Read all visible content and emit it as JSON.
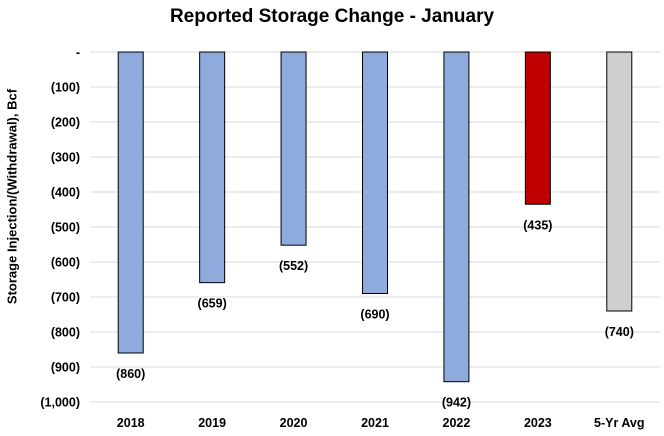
{
  "chart_data": {
    "type": "bar",
    "title": "Reported Storage Change - January",
    "ylabel": "Storage Injection/(Withdrawal), Bcf",
    "xlabel": "",
    "categories": [
      "2018",
      "2019",
      "2020",
      "2021",
      "2022",
      "2023",
      "5-Yr Avg"
    ],
    "values": [
      -860,
      -659,
      -552,
      -690,
      -942,
      -435,
      -740
    ],
    "data_labels": [
      "(860)",
      "(659)",
      "(552)",
      "(690)",
      "(942)",
      "(435)",
      "(740)"
    ],
    "ylim": [
      -1000,
      0
    ],
    "y_ticks": [
      0,
      -100,
      -200,
      -300,
      -400,
      -500,
      -600,
      -700,
      -800,
      -900,
      -1000
    ],
    "y_tick_labels": [
      "-",
      "(100)",
      "(200)",
      "(300)",
      "(400)",
      "(500)",
      "(600)",
      "(700)",
      "(800)",
      "(900)",
      "(1,000)"
    ],
    "grid": true,
    "legend": "none",
    "colors": {
      "default_bar": "#8faadc",
      "highlight_bar": "#c00000",
      "average_bar": "#d0cece",
      "bar_edge": "#000000",
      "grid": "#d9d9d9"
    },
    "bar_colors": [
      "default_bar",
      "default_bar",
      "default_bar",
      "default_bar",
      "default_bar",
      "highlight_bar",
      "average_bar"
    ]
  }
}
